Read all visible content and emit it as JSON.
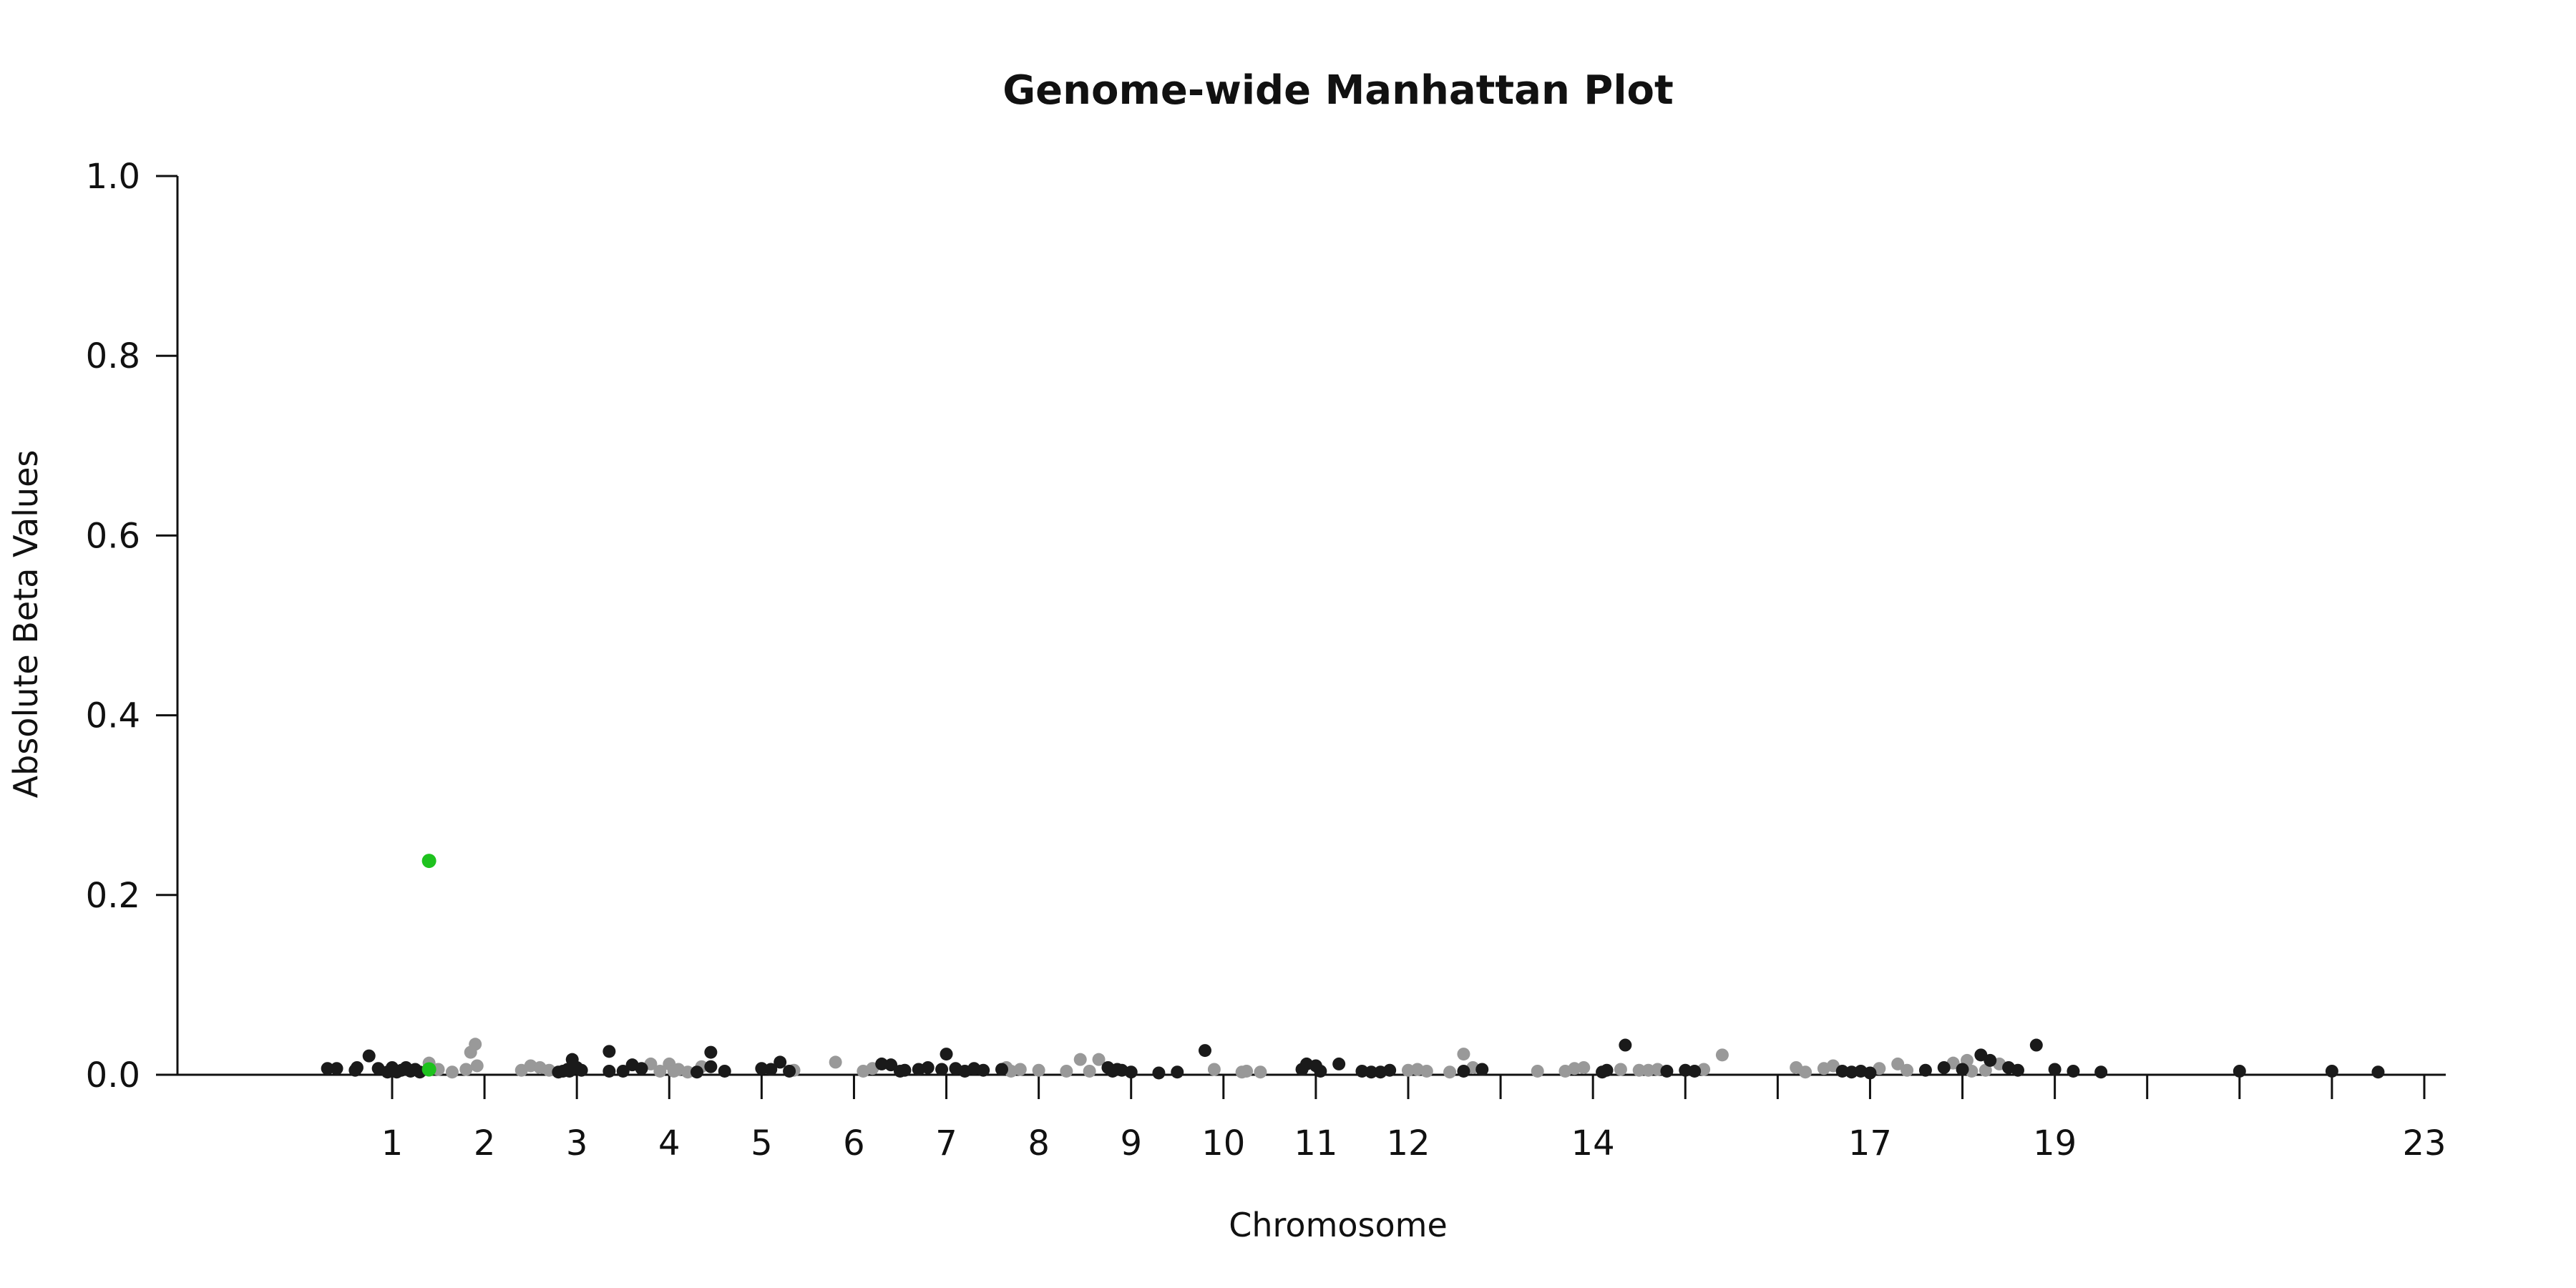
{
  "chart_data": {
    "type": "scatter",
    "title": "Genome-wide Manhattan Plot",
    "xlabel": "Chromosome",
    "ylabel": "Absolute Beta Values",
    "ylim": [
      0,
      1
    ],
    "yticks": [
      "0.0",
      "0.2",
      "0.4",
      "0.6",
      "0.8",
      "1.0"
    ],
    "xticks": [
      {
        "pos": 1,
        "label": "1"
      },
      {
        "pos": 2,
        "label": "2"
      },
      {
        "pos": 3,
        "label": "3"
      },
      {
        "pos": 4,
        "label": "4"
      },
      {
        "pos": 5,
        "label": "5"
      },
      {
        "pos": 6,
        "label": "6"
      },
      {
        "pos": 7,
        "label": "7"
      },
      {
        "pos": 8,
        "label": "8"
      },
      {
        "pos": 9,
        "label": "9"
      },
      {
        "pos": 10,
        "label": "10"
      },
      {
        "pos": 11,
        "label": "11"
      },
      {
        "pos": 12,
        "label": "12"
      },
      {
        "pos": 13,
        "label": ""
      },
      {
        "pos": 14,
        "label": "14"
      },
      {
        "pos": 15,
        "label": ""
      },
      {
        "pos": 16,
        "label": ""
      },
      {
        "pos": 17,
        "label": "17"
      },
      {
        "pos": 18,
        "label": ""
      },
      {
        "pos": 19,
        "label": "19"
      },
      {
        "pos": 20,
        "label": ""
      },
      {
        "pos": 21,
        "label": ""
      },
      {
        "pos": 22,
        "label": ""
      },
      {
        "pos": 23,
        "label": "23"
      }
    ],
    "grid": false,
    "colors": {
      "dark": "#1a1a1a",
      "light": "#999999",
      "highlight": "#1ec21e"
    },
    "highlight": [
      {
        "x": 1.4,
        "y": 0.238
      }
    ],
    "points_dark": [
      [
        0.3,
        0.007
      ],
      [
        0.4,
        0.007
      ],
      [
        0.6,
        0.005
      ],
      [
        0.62,
        0.008
      ],
      [
        0.75,
        0.021
      ],
      [
        0.85,
        0.007
      ],
      [
        0.95,
        0.003
      ],
      [
        1.0,
        0.008
      ],
      [
        1.05,
        0.003
      ],
      [
        1.1,
        0.005
      ],
      [
        1.15,
        0.008
      ],
      [
        1.2,
        0.004
      ],
      [
        1.25,
        0.006
      ],
      [
        1.3,
        0.003
      ],
      [
        2.85,
        0.004
      ],
      [
        2.9,
        0.006
      ],
      [
        2.95,
        0.017
      ],
      [
        3.0,
        0.008
      ],
      [
        3.05,
        0.005
      ],
      [
        2.8,
        0.003
      ],
      [
        2.92,
        0.004
      ],
      [
        3.35,
        0.026
      ],
      [
        3.5,
        0.004
      ],
      [
        3.6,
        0.011
      ],
      [
        3.7,
        0.007
      ],
      [
        3.35,
        0.004
      ],
      [
        4.3,
        0.003
      ],
      [
        4.45,
        0.009
      ],
      [
        4.45,
        0.025
      ],
      [
        4.6,
        0.004
      ],
      [
        5.0,
        0.007
      ],
      [
        5.1,
        0.006
      ],
      [
        5.2,
        0.014
      ],
      [
        5.3,
        0.004
      ],
      [
        6.3,
        0.012
      ],
      [
        6.4,
        0.011
      ],
      [
        6.5,
        0.004
      ],
      [
        6.55,
        0.005
      ],
      [
        6.7,
        0.006
      ],
      [
        6.8,
        0.008
      ],
      [
        6.95,
        0.006
      ],
      [
        7.0,
        0.023
      ],
      [
        7.1,
        0.007
      ],
      [
        7.2,
        0.004
      ],
      [
        7.3,
        0.007
      ],
      [
        7.4,
        0.005
      ],
      [
        7.6,
        0.006
      ],
      [
        8.75,
        0.008
      ],
      [
        8.8,
        0.004
      ],
      [
        8.85,
        0.006
      ],
      [
        8.9,
        0.005
      ],
      [
        9.0,
        0.003
      ],
      [
        9.3,
        0.002
      ],
      [
        9.5,
        0.003
      ],
      [
        9.8,
        0.027
      ],
      [
        10.85,
        0.006
      ],
      [
        10.9,
        0.012
      ],
      [
        11.0,
        0.01
      ],
      [
        11.05,
        0.004
      ],
      [
        11.25,
        0.012
      ],
      [
        11.5,
        0.004
      ],
      [
        11.6,
        0.003
      ],
      [
        11.7,
        0.003
      ],
      [
        11.8,
        0.005
      ],
      [
        12.6,
        0.004
      ],
      [
        12.8,
        0.006
      ],
      [
        14.1,
        0.003
      ],
      [
        14.15,
        0.005
      ],
      [
        14.35,
        0.033
      ],
      [
        14.8,
        0.004
      ],
      [
        15.0,
        0.005
      ],
      [
        15.1,
        0.004
      ],
      [
        16.7,
        0.004
      ],
      [
        16.8,
        0.003
      ],
      [
        16.9,
        0.004
      ],
      [
        17.0,
        0.002
      ],
      [
        17.6,
        0.005
      ],
      [
        17.8,
        0.008
      ],
      [
        18.0,
        0.006
      ],
      [
        18.2,
        0.022
      ],
      [
        18.3,
        0.016
      ],
      [
        18.5,
        0.008
      ],
      [
        18.6,
        0.005
      ],
      [
        18.8,
        0.033
      ],
      [
        19.0,
        0.006
      ],
      [
        19.2,
        0.004
      ],
      [
        19.5,
        0.003
      ],
      [
        21.0,
        0.004
      ],
      [
        22.0,
        0.004
      ],
      [
        22.5,
        0.003
      ]
    ],
    "points_light": [
      [
        1.4,
        0.013
      ],
      [
        1.5,
        0.006
      ],
      [
        1.65,
        0.003
      ],
      [
        1.8,
        0.006
      ],
      [
        1.85,
        0.025
      ],
      [
        1.9,
        0.034
      ],
      [
        1.92,
        0.01
      ],
      [
        2.4,
        0.005
      ],
      [
        2.5,
        0.01
      ],
      [
        2.6,
        0.008
      ],
      [
        2.7,
        0.005
      ],
      [
        3.8,
        0.012
      ],
      [
        3.9,
        0.004
      ],
      [
        4.0,
        0.012
      ],
      [
        4.05,
        0.004
      ],
      [
        4.1,
        0.006
      ],
      [
        4.2,
        0.003
      ],
      [
        4.35,
        0.009
      ],
      [
        5.35,
        0.005
      ],
      [
        5.8,
        0.014
      ],
      [
        6.1,
        0.004
      ],
      [
        6.2,
        0.007
      ],
      [
        7.65,
        0.008
      ],
      [
        7.7,
        0.004
      ],
      [
        7.8,
        0.006
      ],
      [
        8.0,
        0.005
      ],
      [
        8.3,
        0.004
      ],
      [
        8.45,
        0.017
      ],
      [
        8.55,
        0.004
      ],
      [
        8.65,
        0.017
      ],
      [
        9.9,
        0.006
      ],
      [
        10.2,
        0.003
      ],
      [
        10.25,
        0.004
      ],
      [
        10.4,
        0.003
      ],
      [
        12.0,
        0.005
      ],
      [
        12.1,
        0.006
      ],
      [
        12.2,
        0.004
      ],
      [
        12.45,
        0.003
      ],
      [
        12.6,
        0.023
      ],
      [
        12.7,
        0.008
      ],
      [
        13.4,
        0.004
      ],
      [
        13.7,
        0.004
      ],
      [
        13.8,
        0.007
      ],
      [
        13.9,
        0.008
      ],
      [
        14.3,
        0.006
      ],
      [
        14.5,
        0.005
      ],
      [
        14.6,
        0.005
      ],
      [
        14.7,
        0.006
      ],
      [
        15.2,
        0.006
      ],
      [
        15.4,
        0.022
      ],
      [
        16.2,
        0.008
      ],
      [
        16.3,
        0.003
      ],
      [
        16.5,
        0.007
      ],
      [
        16.6,
        0.01
      ],
      [
        17.1,
        0.007
      ],
      [
        17.3,
        0.012
      ],
      [
        17.4,
        0.005
      ],
      [
        17.9,
        0.013
      ],
      [
        18.05,
        0.016
      ],
      [
        18.1,
        0.004
      ],
      [
        18.25,
        0.005
      ],
      [
        18.4,
        0.012
      ]
    ]
  }
}
